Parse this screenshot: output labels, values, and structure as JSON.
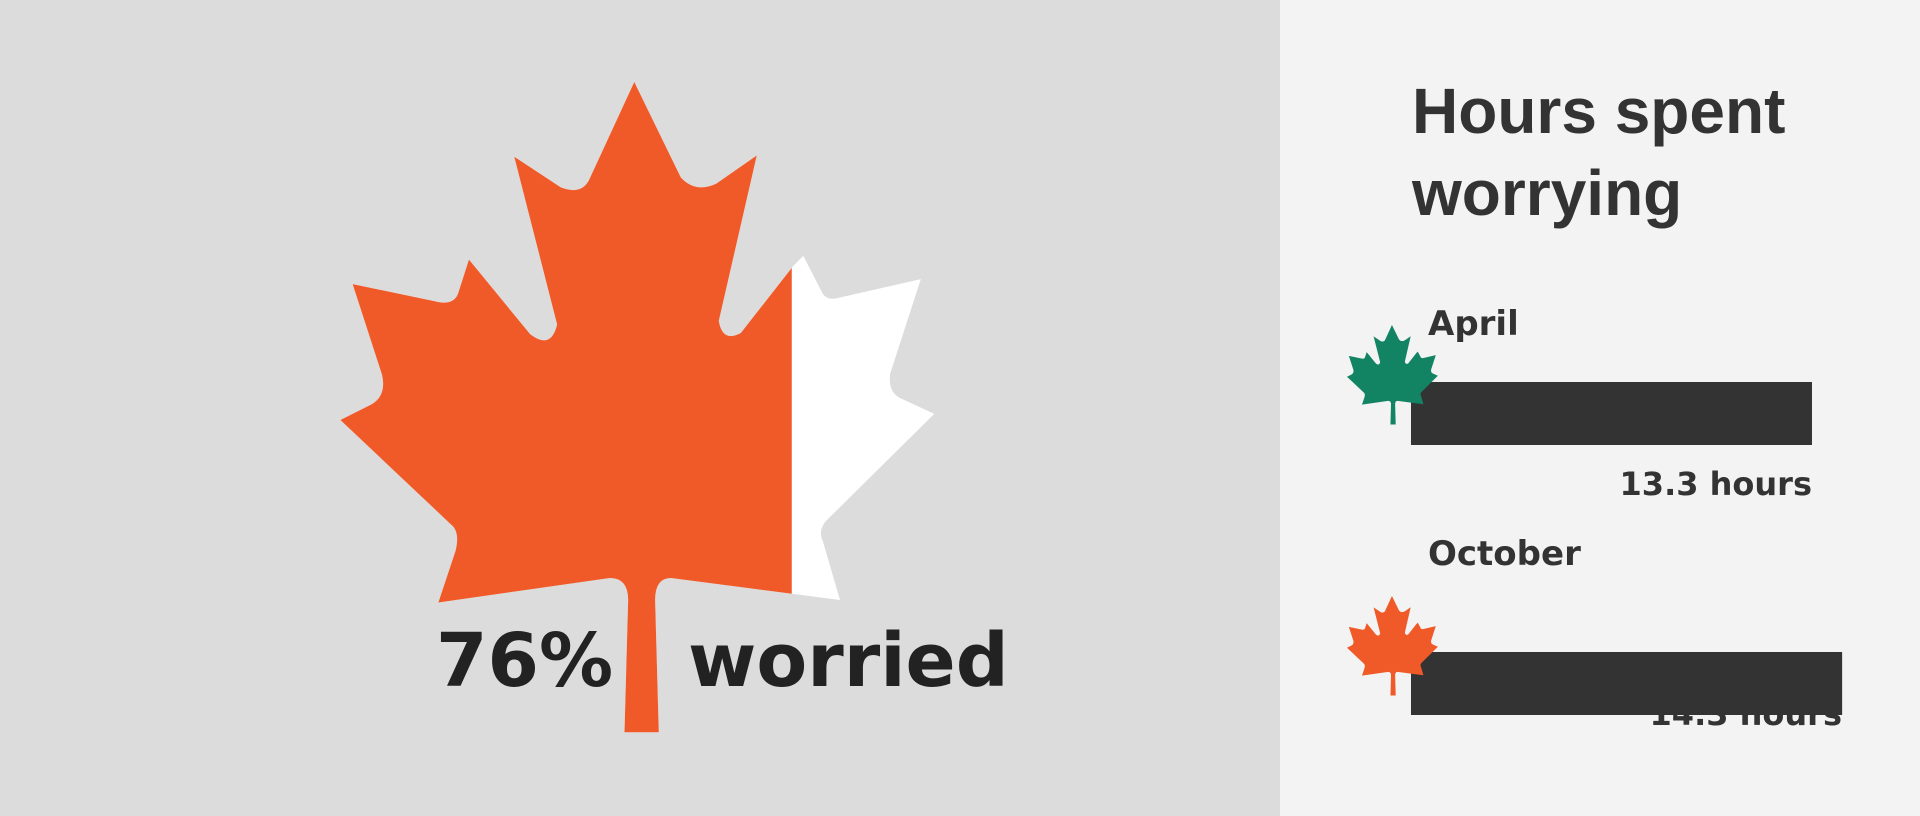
{
  "headline": {
    "percent": "76%",
    "label": "worried",
    "value": 76
  },
  "chart_data": {
    "type": "bar",
    "orientation": "horizontal",
    "title": "Hours spent worrying",
    "categories": [
      "April",
      "October"
    ],
    "values": [
      13.3,
      14.3
    ],
    "value_labels": [
      "13.3 hours",
      "14.3 hours"
    ],
    "unit": "hours",
    "grid": false,
    "bar_color": "#333333",
    "category_icon_colors": [
      "#128464",
      "#f05a28"
    ]
  },
  "colors": {
    "accent": "#f05a28",
    "green": "#128464",
    "left_bg": "#dcdcdc",
    "right_bg": "#f2f3f2",
    "bar": "#333333"
  }
}
